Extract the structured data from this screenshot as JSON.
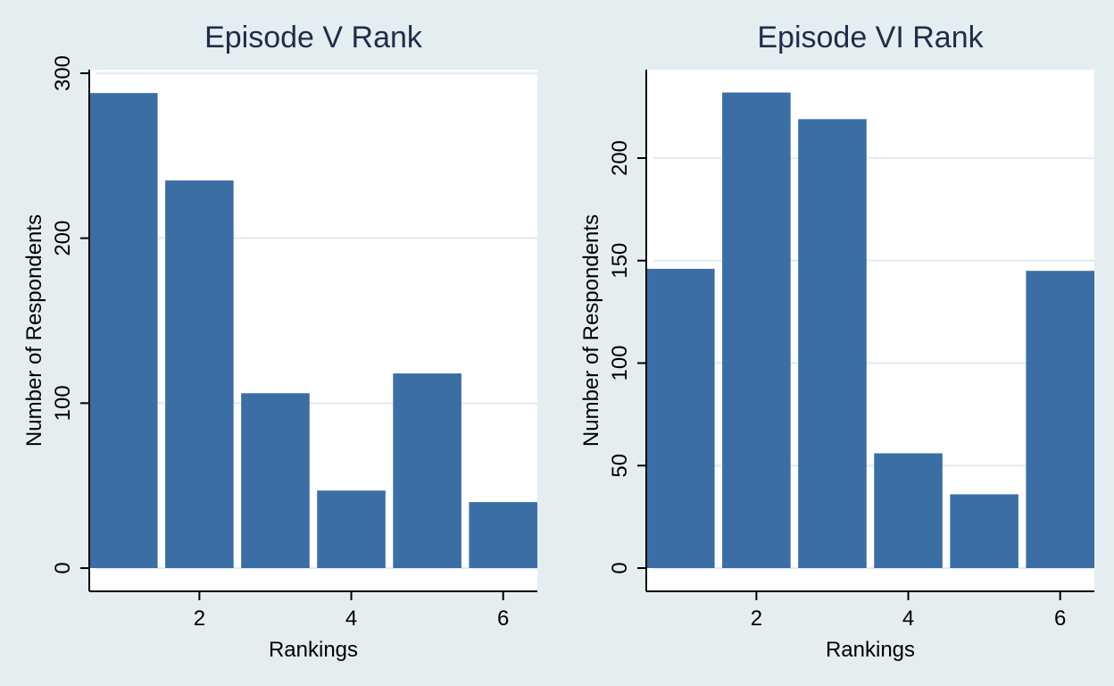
{
  "chart_data": [
    {
      "type": "bar",
      "title": "Episode V Rank",
      "xlabel": "Rankings",
      "ylabel": "Number of Respondents",
      "x": [
        1,
        2,
        3,
        4,
        5,
        6
      ],
      "values": [
        288,
        235,
        106,
        47,
        118,
        40
      ],
      "xticks": [
        2,
        4,
        6
      ],
      "yticks": [
        0,
        100,
        200,
        300
      ],
      "xlim": [
        0.55,
        6.45
      ],
      "ylim": [
        0,
        300
      ],
      "bar_color": "#3a6ea5",
      "grid": true
    },
    {
      "type": "bar",
      "title": "Episode VI Rank",
      "xlabel": "Rankings",
      "ylabel": "Number of Respondents",
      "x": [
        1,
        2,
        3,
        4,
        5,
        6
      ],
      "values": [
        146,
        232,
        219,
        56,
        36,
        145
      ],
      "xticks": [
        2,
        4,
        6
      ],
      "yticks": [
        0,
        50,
        100,
        150,
        200
      ],
      "xlim": [
        0.55,
        6.45
      ],
      "ylim": [
        0,
        244
      ],
      "bar_color": "#3a6ea5",
      "grid": true
    }
  ]
}
